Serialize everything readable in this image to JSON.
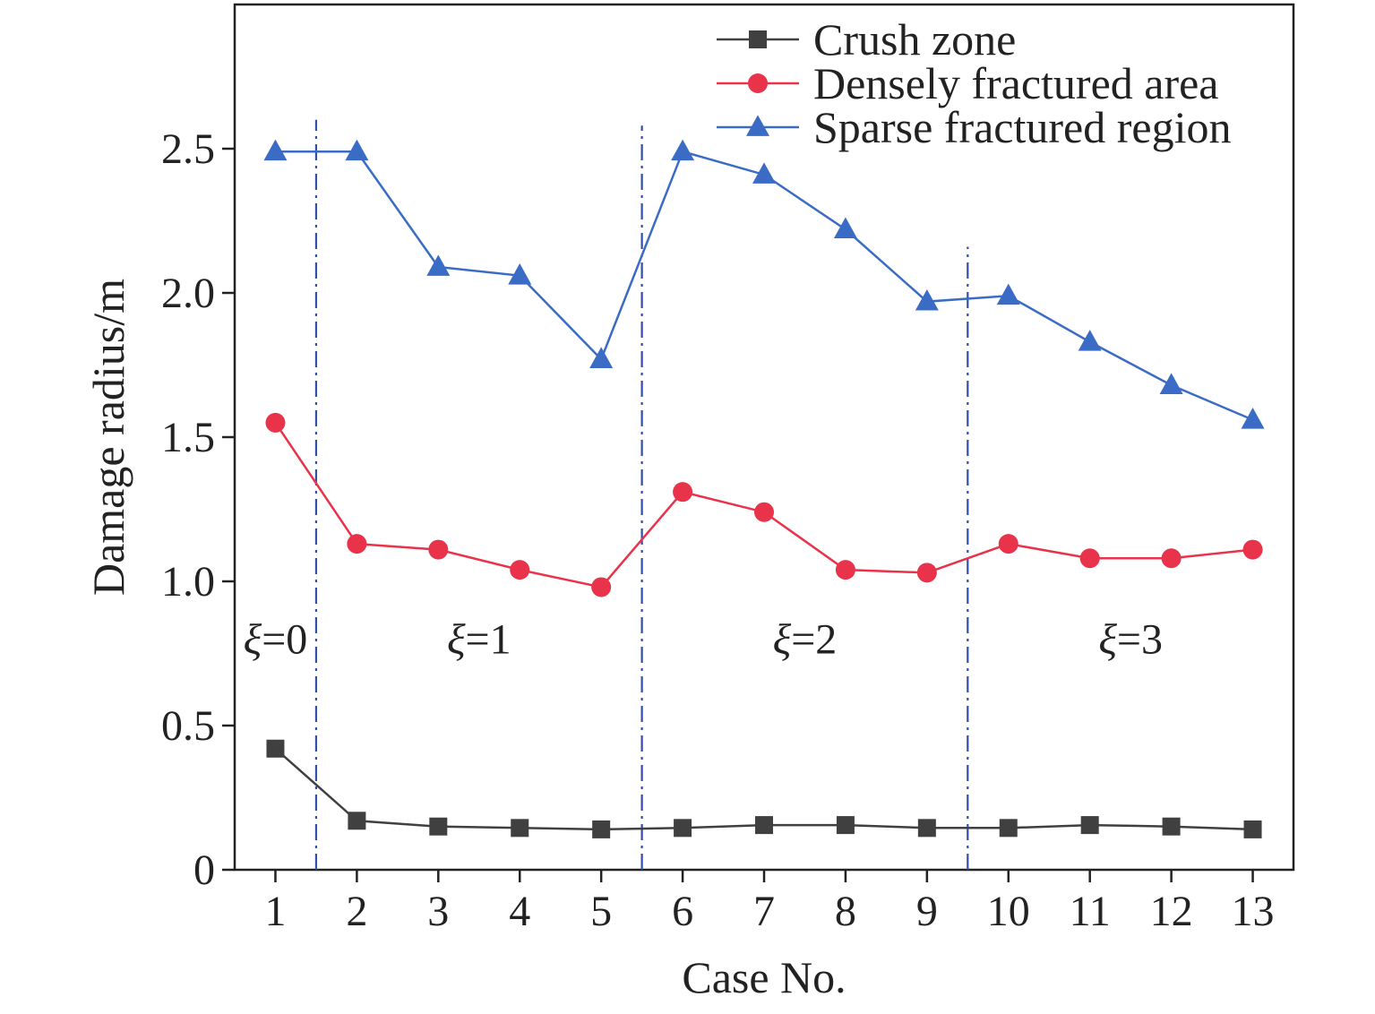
{
  "chart_data": {
    "type": "line",
    "title": "",
    "xlabel": "Case No.",
    "ylabel": "Damage radius/m",
    "x": [
      1,
      2,
      3,
      4,
      5,
      6,
      7,
      8,
      9,
      10,
      11,
      12,
      13
    ],
    "xlim": [
      0.5,
      13.5
    ],
    "ylim": [
      0,
      3.0
    ],
    "y_ticks": [
      0,
      0.5,
      1.0,
      1.5,
      2.0,
      2.5
    ],
    "y_tick_labels": [
      "0",
      "0.5",
      "1.0",
      "1.5",
      "2.0",
      "2.5"
    ],
    "grid": false,
    "legend_position": "top-right",
    "series": [
      {
        "name": "Crush zone",
        "color": "#404040",
        "marker": "square",
        "values": [
          0.42,
          0.17,
          0.15,
          0.145,
          0.14,
          0.145,
          0.155,
          0.155,
          0.145,
          0.145,
          0.155,
          0.15,
          0.14
        ]
      },
      {
        "name": "Densely fractured area",
        "color": "#e8334a",
        "marker": "circle",
        "values": [
          1.55,
          1.13,
          1.11,
          1.04,
          0.98,
          1.31,
          1.24,
          1.04,
          1.03,
          1.13,
          1.08,
          1.08,
          1.11
        ]
      },
      {
        "name": "Sparse fractured region",
        "color": "#3b6cc5",
        "marker": "triangle",
        "values": [
          2.49,
          2.49,
          2.09,
          2.06,
          1.77,
          2.49,
          2.41,
          2.22,
          1.97,
          1.99,
          1.83,
          1.68,
          1.56
        ]
      }
    ],
    "separators": [
      {
        "x": 1.5,
        "top": 2.6
      },
      {
        "x": 5.5,
        "top": 2.58
      },
      {
        "x": 9.5,
        "top": 2.16
      }
    ],
    "separator_color": "#2f4fa8",
    "annotations": [
      {
        "symbol": "ξ",
        "text": "=0",
        "x": 1.0,
        "y": 0.8
      },
      {
        "symbol": "ξ",
        "text": "=1",
        "x": 3.5,
        "y": 0.8
      },
      {
        "symbol": "ξ",
        "text": "=2",
        "x": 7.5,
        "y": 0.8
      },
      {
        "symbol": "ξ",
        "text": "=3",
        "x": 11.5,
        "y": 0.8
      }
    ]
  }
}
